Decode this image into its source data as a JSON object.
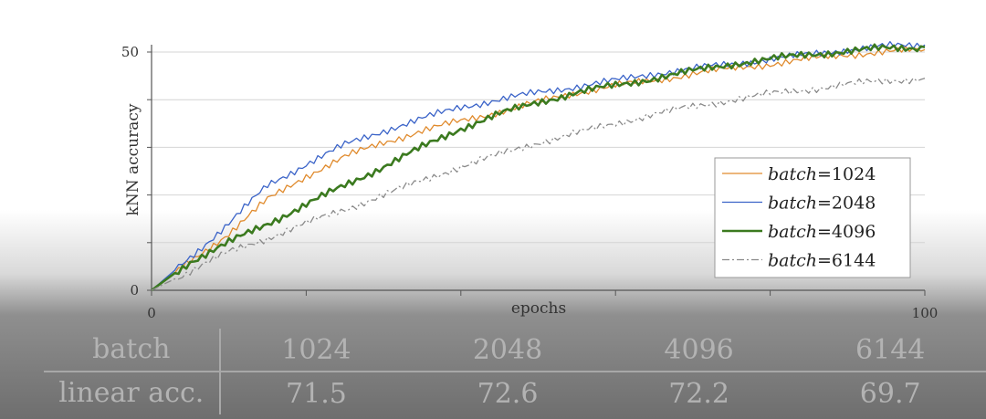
{
  "chart_data": {
    "type": "line",
    "xlabel": "epochs",
    "ylabel": "kNN accuracy",
    "xlim": [
      0,
      100
    ],
    "ylim": [
      0,
      50
    ],
    "x_ticks": [
      0,
      100
    ],
    "y_ticks": [
      0,
      50
    ],
    "grid": "horizontal",
    "legend_position": "bottom-right",
    "legend_prefix": "batch",
    "series": [
      {
        "name": "1024",
        "color": "#e08a2c",
        "style": "solid",
        "width": 1.3,
        "x": [
          0,
          5,
          10,
          15,
          20,
          25,
          30,
          35,
          40,
          45,
          50,
          55,
          60,
          65,
          70,
          75,
          80,
          85,
          90,
          95,
          100
        ],
        "y": [
          0,
          6,
          12,
          19,
          24,
          28,
          31,
          33.5,
          35.5,
          37.5,
          39.5,
          41.5,
          43,
          44,
          45.5,
          46.5,
          47.5,
          48.5,
          49.5,
          50,
          50.5
        ]
      },
      {
        "name": "2048",
        "color": "#3a63c8",
        "style": "solid",
        "width": 1.3,
        "x": [
          0,
          5,
          10,
          15,
          20,
          25,
          30,
          35,
          40,
          45,
          50,
          55,
          60,
          65,
          70,
          75,
          80,
          85,
          90,
          95,
          100
        ],
        "y": [
          0,
          7,
          14,
          22,
          26.5,
          30.5,
          33.5,
          36,
          38.5,
          40,
          41.5,
          42.8,
          44,
          45.5,
          46.5,
          47.5,
          48.5,
          49.5,
          50.5,
          51.2,
          51.5
        ]
      },
      {
        "name": "4096",
        "color": "#3b7a1f",
        "style": "solid",
        "width": 2.6,
        "x": [
          0,
          5,
          10,
          15,
          20,
          25,
          30,
          35,
          40,
          45,
          50,
          55,
          60,
          65,
          70,
          75,
          80,
          85,
          90,
          95,
          100
        ],
        "y": [
          0,
          6,
          10,
          14,
          18,
          22,
          26,
          30,
          34,
          37,
          39.5,
          41.5,
          43,
          44.5,
          46,
          47.5,
          48.5,
          49.5,
          50.2,
          50.8,
          51
        ]
      },
      {
        "name": "6144",
        "color": "#8a8a8a",
        "style": "dashdot",
        "width": 1.3,
        "x": [
          0,
          5,
          10,
          15,
          20,
          25,
          30,
          35,
          40,
          45,
          50,
          55,
          60,
          65,
          70,
          75,
          80,
          85,
          90,
          95,
          100
        ],
        "y": [
          0,
          4,
          8,
          11,
          14,
          17,
          20,
          23,
          26,
          28.5,
          31,
          33,
          35,
          37,
          38.5,
          40,
          41.2,
          42.2,
          43.2,
          44,
          44.5
        ]
      }
    ]
  },
  "table": {
    "header": [
      "batch",
      "1024",
      "2048",
      "4096",
      "6144"
    ],
    "row": [
      "linear acc.",
      "71.5",
      "72.6",
      "72.2",
      "69.7"
    ]
  }
}
